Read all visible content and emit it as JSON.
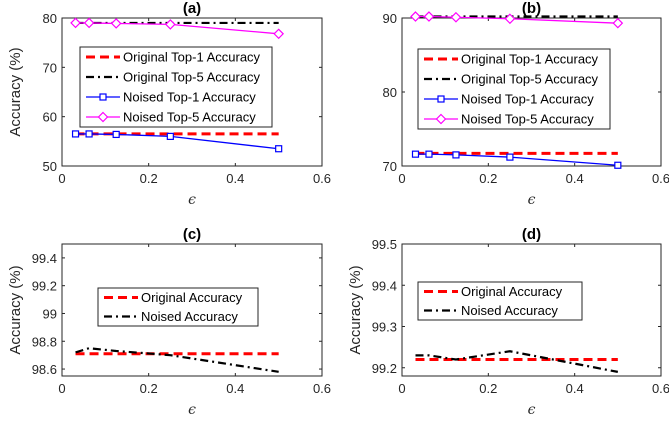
{
  "chart_data": [
    {
      "type": "line",
      "title": "(a)",
      "xlabel": "ϵ",
      "ylabel": "Accuracy (%)",
      "xlim": [
        0,
        0.6
      ],
      "ylim": [
        50,
        80
      ],
      "xticks": [
        0,
        0.2,
        0.4,
        0.6
      ],
      "xtick_labels": [
        "0",
        "0.2",
        "0.4",
        "0.6"
      ],
      "yticks": [
        50,
        60,
        70,
        80
      ],
      "ytick_labels": [
        "50",
        "60",
        "70",
        "80"
      ],
      "grid": false,
      "legend_position": "center",
      "series": [
        {
          "name": "Original Top-1 Accuracy",
          "color": "#ff0000",
          "style": "dashed",
          "marker": "none",
          "x": [
            0.03125,
            0.0625,
            0.125,
            0.25,
            0.5
          ],
          "values": [
            56.5,
            56.5,
            56.5,
            56.5,
            56.5
          ]
        },
        {
          "name": "Original Top-5 Accuracy",
          "color": "#000000",
          "style": "dashdot",
          "marker": "none",
          "x": [
            0.03125,
            0.0625,
            0.125,
            0.25,
            0.5
          ],
          "values": [
            79.0,
            79.0,
            79.0,
            79.0,
            79.0
          ]
        },
        {
          "name": "Noised Top-1 Accuracy",
          "color": "#0000ff",
          "style": "solid",
          "marker": "square",
          "x": [
            0.03125,
            0.0625,
            0.125,
            0.25,
            0.5
          ],
          "values": [
            56.5,
            56.5,
            56.4,
            56.0,
            53.5
          ]
        },
        {
          "name": "Noised Top-5 Accuracy",
          "color": "#ff00ff",
          "style": "solid",
          "marker": "diamond",
          "x": [
            0.03125,
            0.0625,
            0.125,
            0.25,
            0.5
          ],
          "values": [
            79.0,
            79.0,
            78.9,
            78.7,
            76.8
          ]
        }
      ]
    },
    {
      "type": "line",
      "title": "(b)",
      "xlabel": "ϵ",
      "ylabel": "",
      "xlim": [
        0,
        0.6
      ],
      "ylim": [
        70,
        90
      ],
      "xticks": [
        0,
        0.2,
        0.4,
        0.6
      ],
      "xtick_labels": [
        "0",
        "0.2",
        "0.4",
        "0.6"
      ],
      "yticks": [
        70,
        80,
        90
      ],
      "ytick_labels": [
        "70",
        "80",
        "90"
      ],
      "grid": false,
      "legend_position": "center",
      "series": [
        {
          "name": "Original Top-1 Accuracy",
          "color": "#ff0000",
          "style": "dashed",
          "marker": "none",
          "x": [
            0.03125,
            0.0625,
            0.125,
            0.25,
            0.5
          ],
          "values": [
            71.7,
            71.7,
            71.7,
            71.7,
            71.7
          ]
        },
        {
          "name": "Original Top-5 Accuracy",
          "color": "#000000",
          "style": "dashdot",
          "marker": "none",
          "x": [
            0.03125,
            0.0625,
            0.125,
            0.25,
            0.5
          ],
          "values": [
            90.2,
            90.2,
            90.2,
            90.2,
            90.2
          ]
        },
        {
          "name": "Noised Top-1 Accuracy",
          "color": "#0000ff",
          "style": "solid",
          "marker": "square",
          "x": [
            0.03125,
            0.0625,
            0.125,
            0.25,
            0.5
          ],
          "values": [
            71.6,
            71.6,
            71.5,
            71.2,
            70.1
          ]
        },
        {
          "name": "Noised Top-5 Accuracy",
          "color": "#ff00ff",
          "style": "solid",
          "marker": "diamond",
          "x": [
            0.03125,
            0.0625,
            0.125,
            0.25,
            0.5
          ],
          "values": [
            90.2,
            90.2,
            90.1,
            89.9,
            89.3
          ]
        }
      ]
    },
    {
      "type": "line",
      "title": "(c)",
      "xlabel": "ϵ",
      "ylabel": "Accuracy (%)",
      "xlim": [
        0,
        0.6
      ],
      "ylim": [
        98.55,
        99.5
      ],
      "xticks": [
        0,
        0.2,
        0.4,
        0.6
      ],
      "xtick_labels": [
        "0",
        "0.2",
        "0.4",
        "0.6"
      ],
      "yticks": [
        98.6,
        98.8,
        99.0,
        99.2,
        99.4
      ],
      "ytick_labels": [
        "98.6",
        "98.8",
        "99",
        "99.2",
        "99.4"
      ],
      "grid": false,
      "legend_position": "center",
      "series": [
        {
          "name": "Original Accuracy",
          "color": "#ff0000",
          "style": "dashed",
          "marker": "none",
          "x": [
            0.03125,
            0.0625,
            0.125,
            0.25,
            0.5
          ],
          "values": [
            98.71,
            98.71,
            98.71,
            98.71,
            98.71
          ]
        },
        {
          "name": "Noised Accuracy",
          "color": "#000000",
          "style": "dashdot",
          "marker": "none",
          "x": [
            0.03125,
            0.0625,
            0.125,
            0.25,
            0.5
          ],
          "values": [
            98.72,
            98.75,
            98.73,
            98.7,
            98.58
          ]
        }
      ]
    },
    {
      "type": "line",
      "title": "(d)",
      "xlabel": "ϵ",
      "ylabel": "Accuracy (%)",
      "xlim": [
        0,
        0.6
      ],
      "ylim": [
        99.18,
        99.5
      ],
      "xticks": [
        0,
        0.2,
        0.4,
        0.6
      ],
      "xtick_labels": [
        "0",
        "0.2",
        "0.4",
        "0.6"
      ],
      "yticks": [
        99.2,
        99.3,
        99.4,
        99.5
      ],
      "ytick_labels": [
        "99.2",
        "99.3",
        "99.4",
        "99.5"
      ],
      "grid": false,
      "legend_position": "center",
      "series": [
        {
          "name": "Original Accuracy",
          "color": "#ff0000",
          "style": "dashed",
          "marker": "none",
          "x": [
            0.03125,
            0.0625,
            0.125,
            0.25,
            0.5
          ],
          "values": [
            99.22,
            99.22,
            99.22,
            99.22,
            99.22
          ]
        },
        {
          "name": "Noised Accuracy",
          "color": "#000000",
          "style": "dashdot",
          "marker": "none",
          "x": [
            0.03125,
            0.0625,
            0.125,
            0.25,
            0.5
          ],
          "values": [
            99.23,
            99.23,
            99.22,
            99.24,
            99.19
          ]
        }
      ]
    }
  ]
}
